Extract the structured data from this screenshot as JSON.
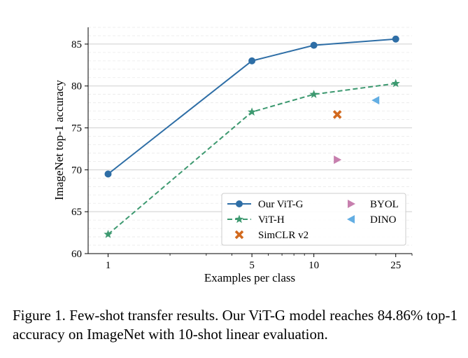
{
  "chart_data": {
    "type": "line",
    "xscale": "log",
    "xlabel": "Examples per class",
    "ylabel": "ImageNet top-1 accuracy",
    "xlim": [
      0.8,
      30
    ],
    "ylim": [
      60,
      87
    ],
    "xticks": [
      1,
      5,
      10,
      25
    ],
    "xtick_labels": [
      "1",
      "5",
      "10",
      "25"
    ],
    "yticks": [
      60,
      65,
      70,
      75,
      80,
      85
    ],
    "ytick_labels": [
      "60",
      "65",
      "70",
      "75",
      "80",
      "85"
    ],
    "grid": "horizontal dashed",
    "legend_position": "lower-right",
    "series": [
      {
        "name": "Our ViT-G",
        "x": [
          1,
          5,
          10,
          25
        ],
        "values": [
          69.5,
          83.0,
          84.86,
          85.6
        ],
        "color": "#2e6ea6",
        "marker": "circle",
        "linestyle": "solid"
      },
      {
        "name": "ViT-H",
        "x": [
          1,
          5,
          10,
          25
        ],
        "values": [
          62.3,
          76.9,
          79.0,
          80.3
        ],
        "color": "#3d9970",
        "marker": "star",
        "linestyle": "dashed"
      },
      {
        "name": "SimCLR v2",
        "x": [
          13
        ],
        "values": [
          76.6
        ],
        "color": "#d2691e",
        "marker": "x",
        "linestyle": "none"
      },
      {
        "name": "BYOL",
        "x": [
          13
        ],
        "values": [
          71.2
        ],
        "color": "#c77fae",
        "marker": "triangle-right",
        "linestyle": "none"
      },
      {
        "name": "DINO",
        "x": [
          20
        ],
        "values": [
          78.3
        ],
        "color": "#63aee3",
        "marker": "triangle-left",
        "linestyle": "none"
      }
    ]
  },
  "caption": {
    "text": "Figure 1.  Few-shot transfer results.  Our ViT-G model reaches 84.86% top-1 accuracy on ImageNet with 10-shot linear evaluation."
  }
}
